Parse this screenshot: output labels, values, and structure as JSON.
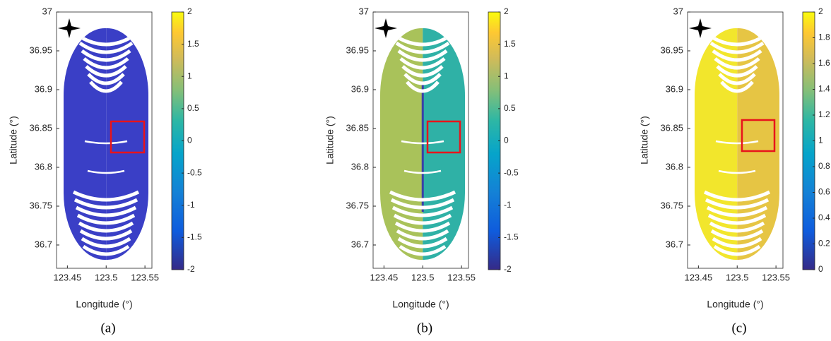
{
  "chart_data": [
    {
      "type": "map",
      "panel_label": "(a)",
      "x_label": "Longitude (°)",
      "y_label": "Latitude (°)",
      "xlim": [
        123.436,
        123.559
      ],
      "xticks": [
        123.45,
        123.5,
        123.55
      ],
      "ylim": [
        36.67,
        37
      ],
      "yticks": [
        36.7,
        36.75,
        36.8,
        36.85,
        36.9,
        36.95,
        37
      ],
      "colors": [
        "#3a3fc6",
        "#3a3fc6"
      ],
      "colorbar": {
        "clim": [
          -2,
          2
        ],
        "ticks": [
          -2,
          -1.5,
          -1,
          -0.5,
          0,
          0.5,
          1,
          1.5,
          2
        ]
      }
    },
    {
      "type": "map",
      "panel_label": "(b)",
      "x_label": "Longitude (°)",
      "y_label": "Latitude (°)",
      "xlim": [
        123.436,
        123.559
      ],
      "xticks": [
        123.45,
        123.5,
        123.55
      ],
      "ylim": [
        36.67,
        37
      ],
      "yticks": [
        36.7,
        36.75,
        36.8,
        36.85,
        36.9,
        36.95,
        37
      ],
      "colors": [
        "#a9c25a",
        "#2fb1a6"
      ],
      "colorbar": {
        "clim": [
          -2,
          2
        ],
        "ticks": [
          -2,
          -1.5,
          -1,
          -0.5,
          0,
          0.5,
          1,
          1.5,
          2
        ]
      }
    },
    {
      "type": "map",
      "panel_label": "(c)",
      "x_label": "Longitude (°)",
      "y_label": "Latitude (°)",
      "xlim": [
        123.436,
        123.559
      ],
      "xticks": [
        123.45,
        123.5,
        123.55
      ],
      "ylim": [
        36.67,
        37
      ],
      "yticks": [
        36.7,
        36.75,
        36.8,
        36.85,
        36.9,
        36.95,
        37
      ],
      "colors": [
        "#f2e62c",
        "#e6c544"
      ],
      "colorbar": {
        "clim": [
          0,
          2
        ],
        "ticks": [
          0,
          0.2,
          0.4,
          0.6,
          0.8,
          1,
          1.2,
          1.4,
          1.6,
          1.8,
          2
        ]
      }
    }
  ]
}
